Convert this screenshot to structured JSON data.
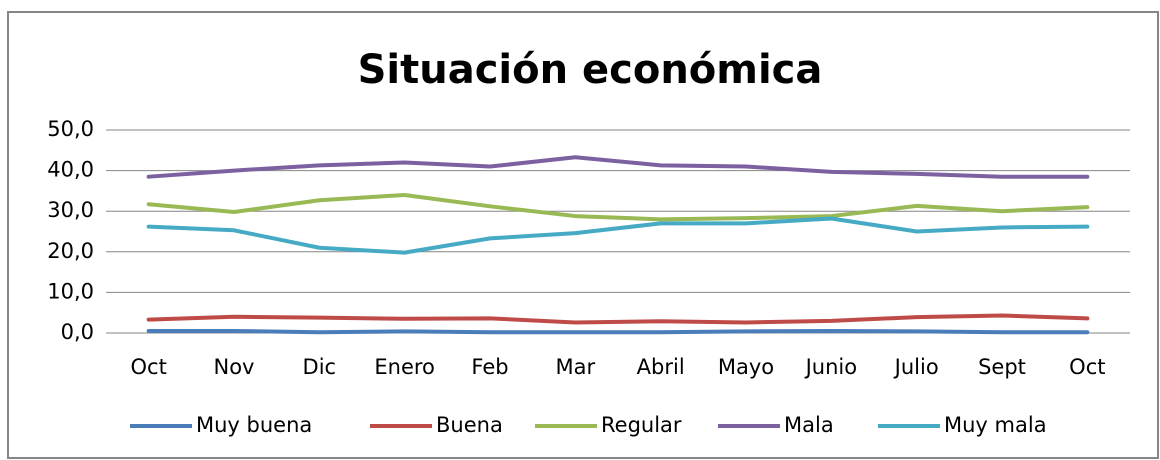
{
  "chart_data": {
    "type": "line",
    "title": "Situación económica",
    "categories": [
      "Oct",
      "Nov",
      "Dic",
      "Enero",
      "Feb",
      "Mar",
      "Abril",
      "Mayo",
      "Junio",
      "Julio",
      "Sept",
      "Oct"
    ],
    "series": [
      {
        "name": "Muy buena",
        "color": "#4a7ebb",
        "values": [
          0.5,
          0.5,
          0.2,
          0.4,
          0.2,
          0.2,
          0.2,
          0.4,
          0.5,
          0.4,
          0.2,
          0.2
        ]
      },
      {
        "name": "Buena",
        "color": "#be4b48",
        "values": [
          3.3,
          4.0,
          3.8,
          3.5,
          3.6,
          2.6,
          2.9,
          2.6,
          3.0,
          3.9,
          4.3,
          3.6
        ]
      },
      {
        "name": "Regular",
        "color": "#98b954",
        "values": [
          31.7,
          29.8,
          32.7,
          34.0,
          31.2,
          28.8,
          28.0,
          28.3,
          28.8,
          31.3,
          30.0,
          31.0
        ]
      },
      {
        "name": "Mala",
        "color": "#7d60a0",
        "values": [
          38.5,
          40.0,
          41.3,
          42.0,
          41.0,
          43.3,
          41.3,
          41.0,
          39.7,
          39.2,
          38.5,
          38.5
        ]
      },
      {
        "name": "Muy mala",
        "color": "#46aac5",
        "values": [
          26.2,
          25.3,
          21.0,
          19.8,
          23.3,
          24.6,
          27.0,
          27.0,
          28.2,
          25.0,
          26.0,
          26.2
        ]
      }
    ],
    "ylim": [
      0,
      50
    ],
    "yticks": [
      {
        "value": 0,
        "label": "0,0"
      },
      {
        "value": 10,
        "label": "10,0"
      },
      {
        "value": 20,
        "label": "20,0"
      },
      {
        "value": 30,
        "label": "30,0"
      },
      {
        "value": 40,
        "label": "40,0"
      },
      {
        "value": 50,
        "label": "50,0"
      }
    ],
    "grid": true,
    "legend": "bottom"
  }
}
